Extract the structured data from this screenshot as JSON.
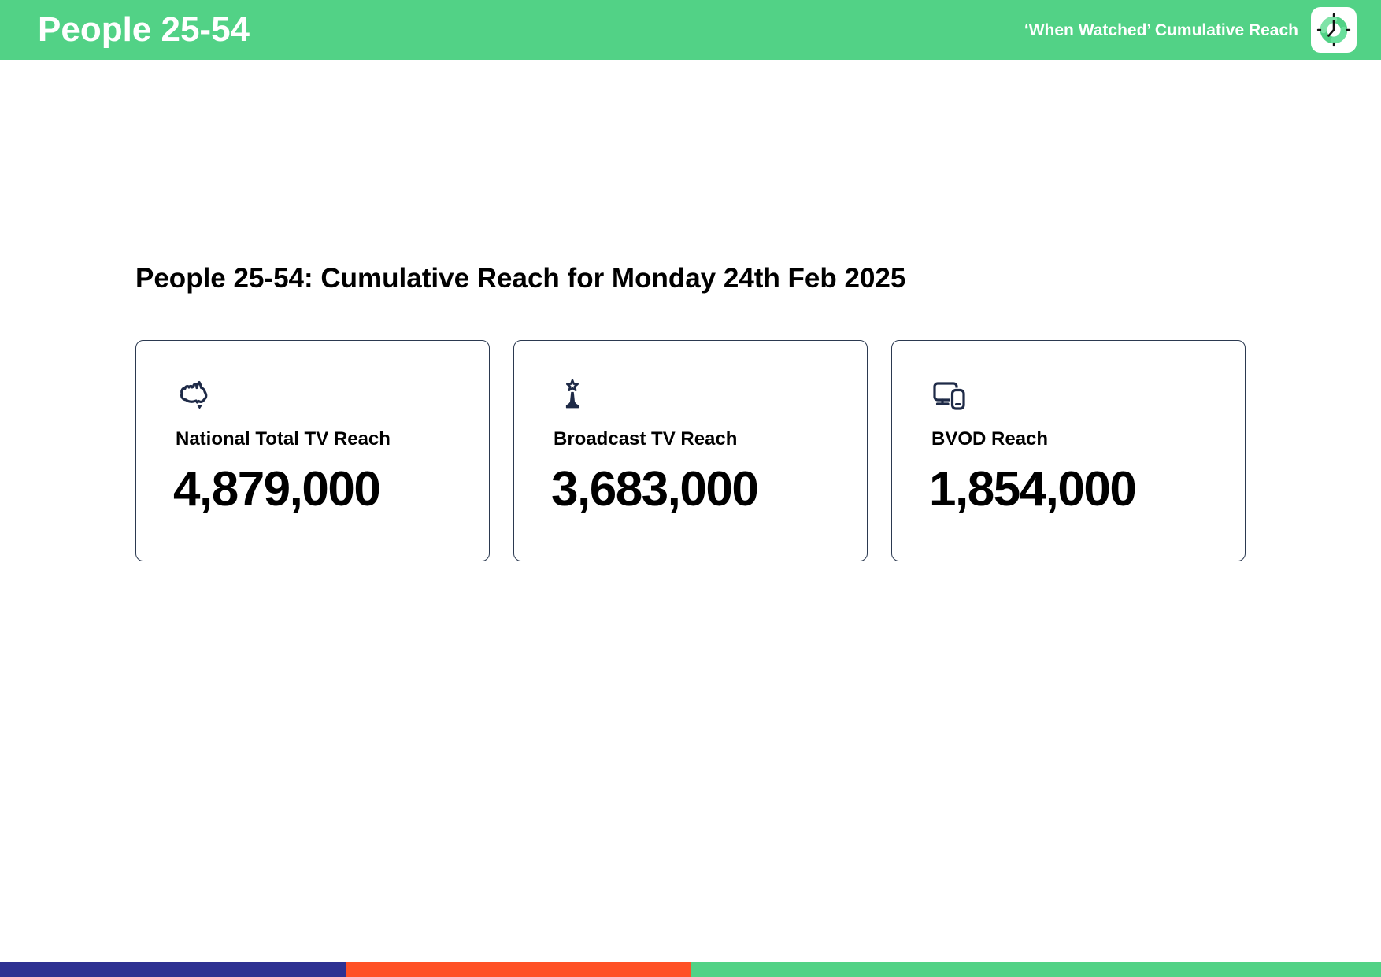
{
  "header": {
    "title": "People 25-54",
    "subtitle": "‘When Watched’ Cumulative Reach",
    "bg_color": "#52d286",
    "app_icon": "clock-icon"
  },
  "page": {
    "heading": "People 25-54: Cumulative Reach for Monday 24th Feb 2025"
  },
  "cards": [
    {
      "icon": "australia-map-icon",
      "label": "National Total TV Reach",
      "value": "4,879,000"
    },
    {
      "icon": "broadcast-tower-icon",
      "label": "Broadcast TV Reach",
      "value": "3,683,000"
    },
    {
      "icon": "devices-icon",
      "label": "BVOD Reach",
      "value": "1,854,000"
    }
  ],
  "colors": {
    "header_bg": "#52d286",
    "icon_navy": "#1e2a47",
    "card_border": "#2b3950"
  },
  "footer": {
    "segments": [
      {
        "name": "blue-segment",
        "color": "#2e3192",
        "width_pct": 25
      },
      {
        "name": "orange-segment",
        "color": "#ff5126",
        "width_pct": 25
      },
      {
        "name": "green-segment",
        "color": "#52d286",
        "width_pct": 50
      }
    ]
  }
}
